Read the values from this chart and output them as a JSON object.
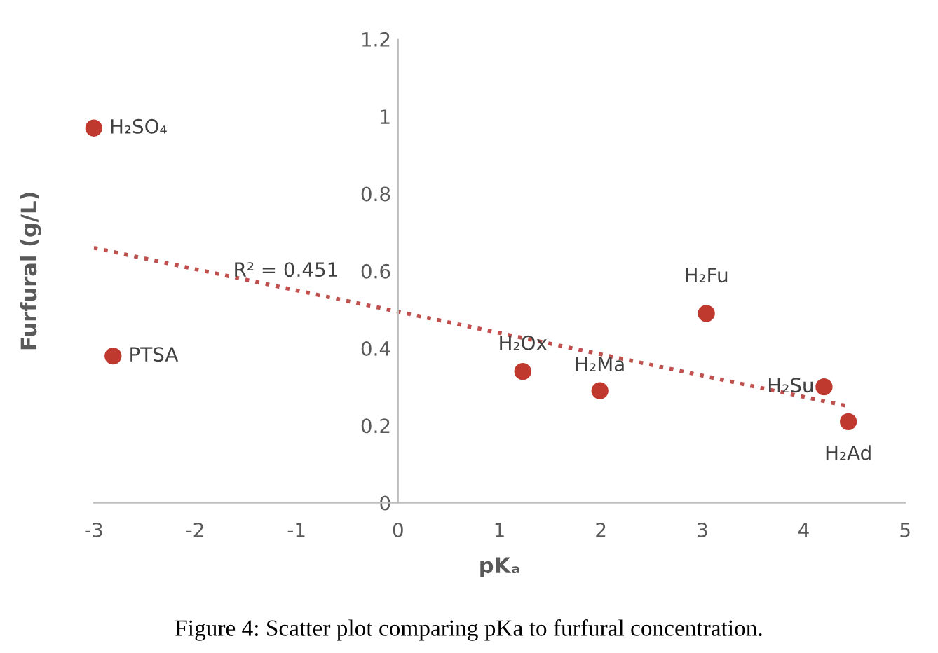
{
  "chart_data": {
    "type": "scatter",
    "xlabel": "pKₐ",
    "ylabel": "Furfural (g/L)",
    "xlim": [
      -3,
      5
    ],
    "xticks": [
      -3,
      -2,
      -1,
      0,
      1,
      2,
      3,
      4,
      5
    ],
    "ylim": [
      0,
      1.2
    ],
    "yticks": [
      0,
      0.2,
      0.4,
      0.6,
      0.8,
      1,
      1.2
    ],
    "grid": false,
    "series": [
      {
        "marker": "circle",
        "color": "#c0392f",
        "x": [
          -3,
          -2.81,
          1.23,
          1.99,
          3.04,
          4.2,
          4.44
        ],
        "values": [
          0.97,
          0.38,
          0.34,
          0.29,
          0.49,
          0.3,
          0.21
        ]
      },
      {
        "type": "line",
        "marker": "none",
        "color": "#c0504d",
        "line_style": "dotted",
        "x": [
          -3,
          4.44
        ],
        "values": [
          0.66,
          0.25
        ]
      }
    ],
    "annotations": [
      {
        "text": "H₂SO₄",
        "x": -3,
        "y": 0.97
      },
      {
        "text": "PTSA",
        "x": -2.81,
        "y": 0.38
      },
      {
        "text": "H₂Ox",
        "x": 1.23,
        "y": 0.34
      },
      {
        "text": "H₂Ma",
        "x": 1.99,
        "y": 0.29
      },
      {
        "text": "H₂Fu",
        "x": 3.04,
        "y": 0.49
      },
      {
        "text": "H₂Su",
        "x": 4.2,
        "y": 0.3
      },
      {
        "text": "H₂Ad",
        "x": 4.44,
        "y": 0.21
      },
      "R² = 0.451",
      "Figure 4: Scatter plot comparing pKa to furfural concentration."
    ]
  }
}
